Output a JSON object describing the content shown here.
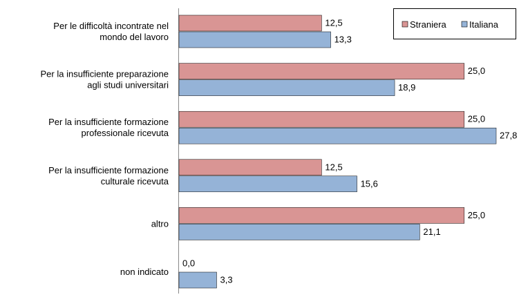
{
  "chart_data": {
    "type": "bar",
    "orientation": "horizontal",
    "categories": [
      [
        "Per le difficoltà incontrate nel",
        "mondo del lavoro"
      ],
      [
        "Per la insufficiente preparazione",
        "agli studi universitari"
      ],
      [
        "Per la insufficiente formazione",
        "professionale ricevuta"
      ],
      [
        "Per la insufficiente formazione",
        "culturale ricevuta"
      ],
      [
        "altro"
      ],
      [
        "non indicato"
      ]
    ],
    "series": [
      {
        "name": "Straniera",
        "color": "#D99594",
        "values": [
          12.5,
          25.0,
          25.0,
          12.5,
          25.0,
          0.0
        ],
        "labels": [
          "12,5",
          "25,0",
          "25,0",
          "12,5",
          "25,0",
          "0,0"
        ]
      },
      {
        "name": "Italiana",
        "color": "#95B3D7",
        "values": [
          13.3,
          18.9,
          27.8,
          15.6,
          21.1,
          3.3
        ],
        "labels": [
          "13,3",
          "18,9",
          "27,8",
          "15,6",
          "21,1",
          "3,3"
        ]
      }
    ],
    "xlim": [
      0,
      28.5
    ],
    "legend": "top-right",
    "grid": false,
    "title": "",
    "xlabel": "",
    "ylabel": ""
  }
}
